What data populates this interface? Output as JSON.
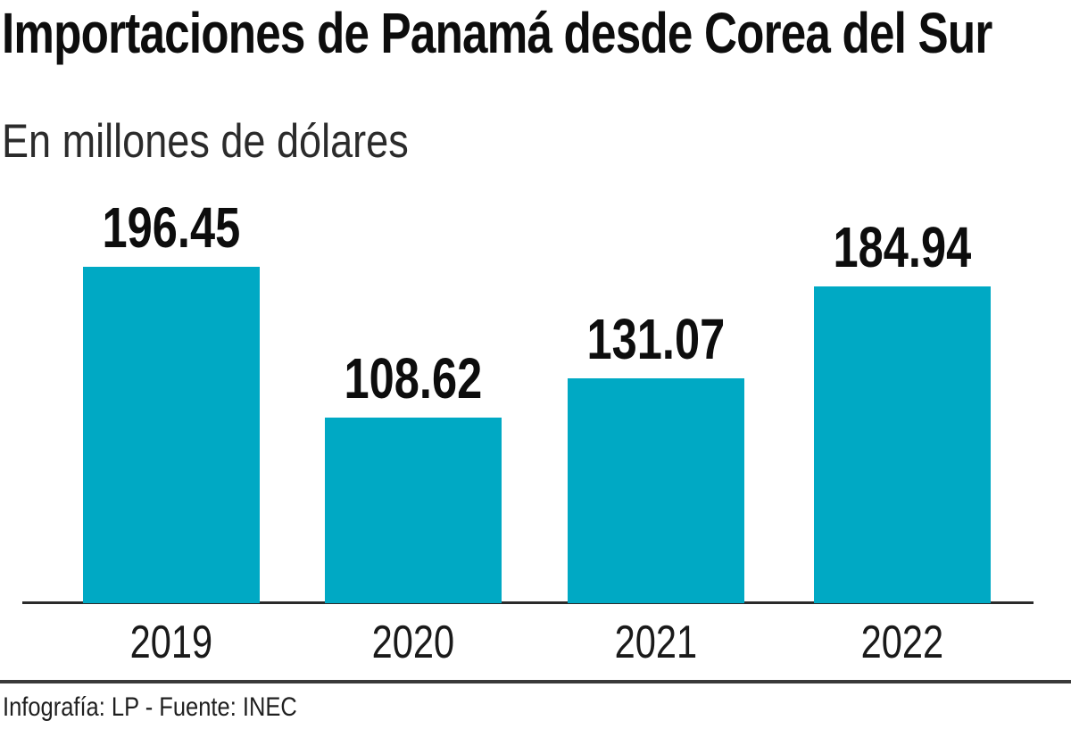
{
  "header": {
    "title": "Importaciones de Panamá desde Corea del Sur",
    "subtitle": "En millones de dólares"
  },
  "chart_data": {
    "type": "bar",
    "title": "Importaciones de Panamá desde Corea del Sur",
    "subtitle": "En millones de dólares",
    "categories": [
      "2019",
      "2020",
      "2021",
      "2022"
    ],
    "values": [
      196.45,
      108.62,
      131.07,
      184.94
    ],
    "value_labels": [
      "196.45",
      "108.62",
      "131.07",
      "184.94"
    ],
    "xlabel": "",
    "ylabel": "",
    "ylim": [
      0,
      210
    ],
    "grid": false,
    "legend": false,
    "bar_color": "#00a9c4",
    "axis_color": "#2b2b2b"
  },
  "footer": {
    "credit": "Infografía: LP - Fuente: INEC"
  },
  "colors": {
    "bar": "#00a9c4",
    "title_text": "#0d0d0d",
    "axis_line": "#2b2b2b",
    "divider": "#3a3a3a",
    "background": "#ffffff"
  }
}
